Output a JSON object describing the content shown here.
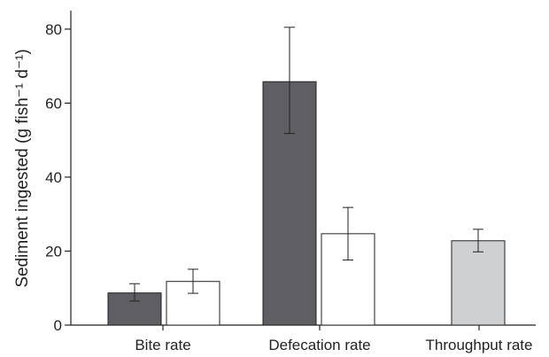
{
  "chart_data": {
    "type": "bar",
    "ylabel": "Sediment ingested (g fish⁻¹ d⁻¹)",
    "ylim": [
      0,
      85
    ],
    "yticks": [
      0,
      20,
      40,
      60,
      80
    ],
    "categories": [
      "Bite rate",
      "Defecation rate",
      "Throughput rate"
    ],
    "bars": [
      {
        "category": "Bite rate",
        "value": 8.7,
        "err_low": 6.5,
        "err_high": 11.2,
        "color": "#5f5f63"
      },
      {
        "category": "Bite rate",
        "value": 11.8,
        "err_low": 8.6,
        "err_high": 15.1,
        "color": "#ffffff"
      },
      {
        "category": "Defecation rate",
        "value": 65.8,
        "err_low": 51.8,
        "err_high": 80.5,
        "color": "#5f5f63"
      },
      {
        "category": "Defecation rate",
        "value": 24.7,
        "err_low": 17.6,
        "err_high": 31.8,
        "color": "#ffffff"
      },
      {
        "category": "Throughput rate",
        "value": 22.8,
        "err_low": 19.8,
        "err_high": 25.9,
        "color": "#cfd0d2"
      }
    ]
  }
}
